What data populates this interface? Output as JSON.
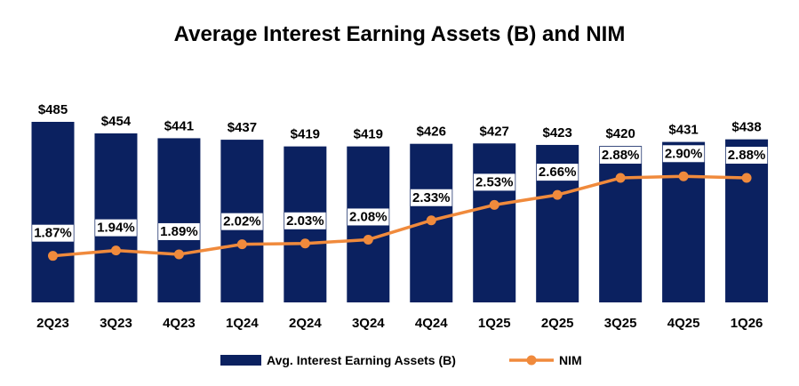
{
  "chart_data": {
    "type": "bar",
    "title": "Average Interest Earning Assets (B) and NIM",
    "categories": [
      "2Q23",
      "3Q23",
      "4Q23",
      "1Q24",
      "2Q24",
      "3Q24",
      "4Q24",
      "1Q25",
      "2Q25",
      "3Q25",
      "4Q25",
      "1Q26"
    ],
    "series": [
      {
        "name": "Avg. Interest Earning Assets (B)",
        "type": "bar",
        "values": [
          485,
          454,
          441,
          437,
          419,
          419,
          426,
          427,
          423,
          420,
          431,
          438
        ],
        "labels": [
          "$485",
          "$454",
          "$441",
          "$437",
          "$419",
          "$419",
          "$426",
          "$427",
          "$423",
          "$420",
          "$431",
          "$438"
        ],
        "color": "#0B2160"
      },
      {
        "name": "NIM",
        "type": "line",
        "values": [
          1.87,
          1.94,
          1.89,
          2.02,
          2.03,
          2.08,
          2.33,
          2.53,
          2.66,
          2.88,
          2.9,
          2.88
        ],
        "labels": [
          "1.87%",
          "1.94%",
          "1.89%",
          "2.02%",
          "2.03%",
          "2.08%",
          "2.33%",
          "2.53%",
          "2.66%",
          "2.88%",
          "2.90%",
          "2.88%"
        ],
        "color": "#F08A3C"
      }
    ],
    "grid": false,
    "legend_position": "bottom"
  }
}
